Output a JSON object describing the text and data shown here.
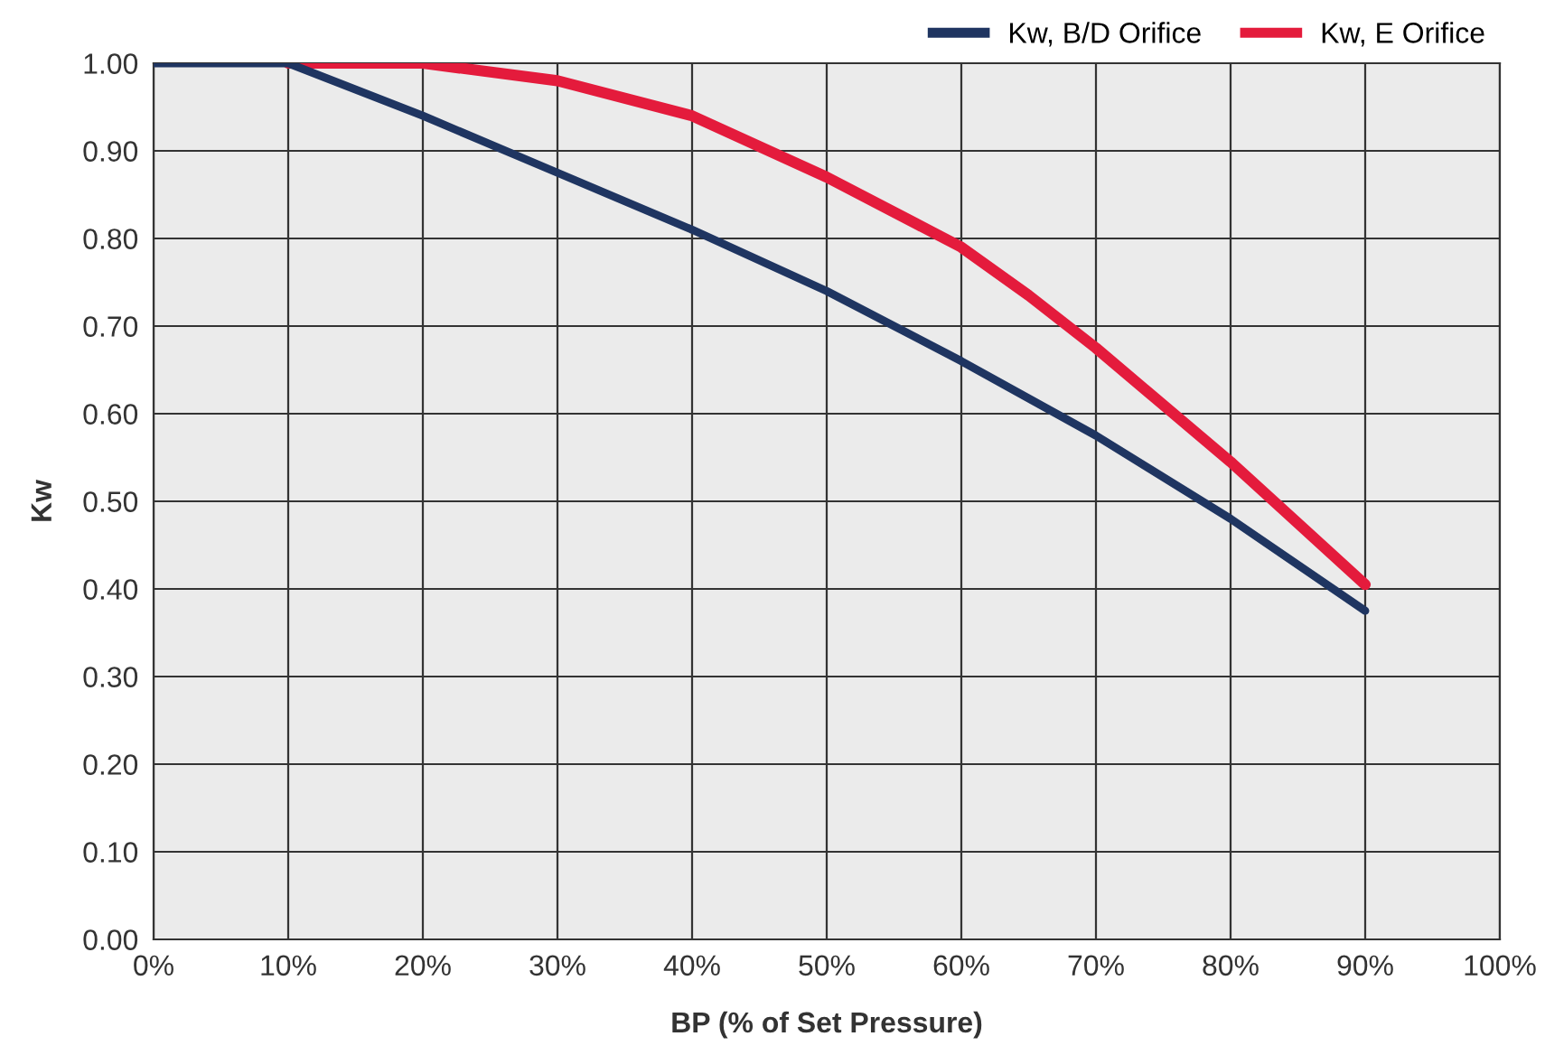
{
  "chart_data": {
    "type": "line",
    "xlabel": "BP (% of Set Pressure)",
    "ylabel": "Kw",
    "series": [
      {
        "name": "Kw, B/D Orifice",
        "color": "#1f3561",
        "x": [
          0,
          10,
          20,
          30,
          40,
          50,
          60,
          70,
          80,
          90
        ],
        "values": [
          1.0,
          1.0,
          0.94,
          0.875,
          0.81,
          0.74,
          0.66,
          0.575,
          0.48,
          0.375
        ]
      },
      {
        "name": "Kw, E Orifice",
        "color": "#e41b3c",
        "x": [
          10,
          20,
          30,
          40,
          50,
          60,
          65,
          70,
          80,
          85,
          90
        ],
        "values": [
          1.0,
          1.0,
          0.98,
          0.94,
          0.87,
          0.79,
          0.735,
          0.675,
          0.545,
          0.475,
          0.405
        ]
      }
    ],
    "xlim": [
      0,
      100
    ],
    "xticks": [
      {
        "value": 0,
        "label": "0%"
      },
      {
        "value": 10,
        "label": "10%"
      },
      {
        "value": 20,
        "label": "20%"
      },
      {
        "value": 30,
        "label": "30%"
      },
      {
        "value": 40,
        "label": "40%"
      },
      {
        "value": 50,
        "label": "50%"
      },
      {
        "value": 60,
        "label": "60%"
      },
      {
        "value": 70,
        "label": "70%"
      },
      {
        "value": 80,
        "label": "80%"
      },
      {
        "value": 90,
        "label": "90%"
      },
      {
        "value": 100,
        "label": "100%"
      }
    ],
    "ylim": [
      0,
      1
    ],
    "yticks": [
      {
        "value": 0,
        "label": "0.00"
      },
      {
        "value": 0.1,
        "label": "0.10"
      },
      {
        "value": 0.2,
        "label": "0.20"
      },
      {
        "value": 0.3,
        "label": "0.30"
      },
      {
        "value": 0.4,
        "label": "0.40"
      },
      {
        "value": 0.5,
        "label": "0.50"
      },
      {
        "value": 0.6,
        "label": "0.60"
      },
      {
        "value": 0.7,
        "label": "0.70"
      },
      {
        "value": 0.8,
        "label": "0.80"
      },
      {
        "value": 0.9,
        "label": "0.90"
      },
      {
        "value": 1.0,
        "label": "1.00"
      }
    ],
    "grid": true,
    "legend": "top right",
    "line_style": "solid",
    "marker": "none"
  }
}
